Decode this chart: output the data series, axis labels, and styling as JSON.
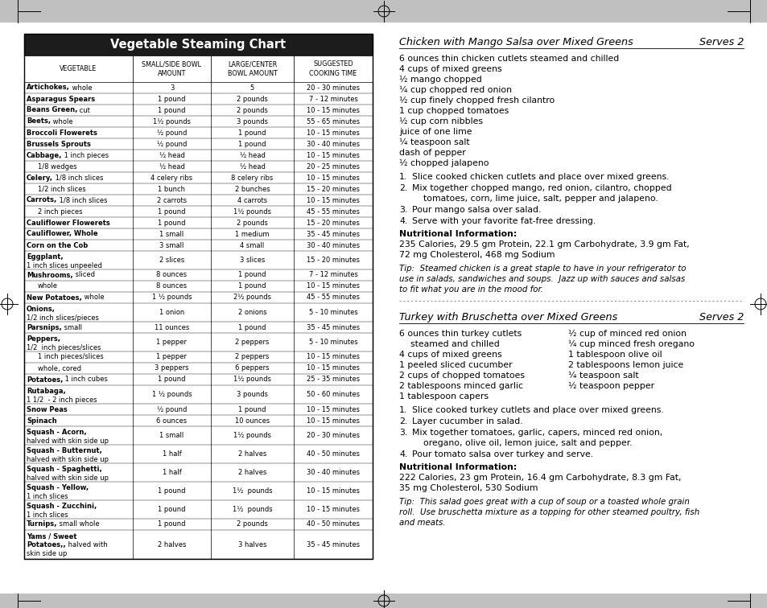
{
  "table_title": "Vegetable Steaming Chart",
  "col_headers": [
    "VEGETABLE",
    "SMALL/SIDE BOWL\nAMOUNT",
    "LARGE/CENTER\nBOWL AMOUNT",
    "SUGGESTED\nCOOKING TIME"
  ],
  "table_rows": [
    [
      [
        "b",
        "Artichokes,"
      ],
      [
        "n",
        " whole"
      ],
      "3",
      "5",
      "20 - 30 minutes"
    ],
    [
      [
        "b",
        "Asparagus Spears"
      ],
      [
        "n",
        ""
      ],
      "1 pound",
      "2 pounds",
      "7 - 12 minutes"
    ],
    [
      [
        "b",
        "Beans Green,"
      ],
      [
        "n",
        " cut"
      ],
      "1 pound",
      "2 pounds",
      "10 - 15 minutes"
    ],
    [
      [
        "b",
        "Beets,"
      ],
      [
        "n",
        " whole"
      ],
      "1½ pounds",
      "3 pounds",
      "55 - 65 minutes"
    ],
    [
      [
        "b",
        "Broccoli Flowerets"
      ],
      [
        "n",
        ""
      ],
      "½ pound",
      "1 pound",
      "10 - 15 minutes"
    ],
    [
      [
        "b",
        "Brussels Sprouts"
      ],
      [
        "n",
        ""
      ],
      "½ pound",
      "1 pound",
      "30 - 40 minutes"
    ],
    [
      [
        "b",
        "Cabbage,"
      ],
      [
        "n",
        " 1 inch pieces"
      ],
      "½ head",
      "½ head",
      "10 - 15 minutes"
    ],
    [
      [
        "i",
        "1/8 wedges"
      ],
      [
        "n",
        ""
      ],
      "½ head",
      "½ head",
      "20 - 25 minutes"
    ],
    [
      [
        "b",
        "Celery,"
      ],
      [
        "n",
        " 1/8 inch slices"
      ],
      "4 celery ribs",
      "8 celery ribs",
      "10 - 15 minutes"
    ],
    [
      [
        "i",
        "1/2 inch slices"
      ],
      [
        "n",
        ""
      ],
      "1 bunch",
      "2 bunches",
      "15 - 20 minutes"
    ],
    [
      [
        "b",
        "Carrots,"
      ],
      [
        "n",
        " 1/8 inch slices"
      ],
      "2 carrots",
      "4 carrots",
      "10 - 15 minutes"
    ],
    [
      [
        "i",
        "2 inch pieces"
      ],
      [
        "n",
        ""
      ],
      "1 pound",
      "1½ pounds",
      "45 - 55 minutes"
    ],
    [
      [
        "b",
        "Cauliflower Flowerets"
      ],
      [
        "n",
        ""
      ],
      "1 pound",
      "2 pounds",
      "15 - 20 minutes"
    ],
    [
      [
        "b",
        "Cauliflower, Whole"
      ],
      [
        "n",
        ""
      ],
      "1 small",
      "1 medium",
      "35 - 45 minutes"
    ],
    [
      [
        "b",
        "Corn on the Cob"
      ],
      [
        "n",
        ""
      ],
      "3 small",
      "4 small",
      "30 - 40 minutes"
    ],
    [
      [
        "b2",
        "Eggplant,",
        "1 inch slices unpeeled"
      ],
      [
        "n",
        ""
      ],
      "2 slices",
      "3 slices",
      "15 - 20 minutes"
    ],
    [
      [
        "b",
        "Mushrooms,"
      ],
      [
        "n",
        " sliced"
      ],
      "8 ounces",
      "1 pound",
      "7 - 12 minutes"
    ],
    [
      [
        "i",
        "whole"
      ],
      [
        "n",
        ""
      ],
      "8 ounces",
      "1 pound",
      "10 - 15 minutes"
    ],
    [
      [
        "b",
        "New Potatoes,"
      ],
      [
        "n",
        " whole"
      ],
      "1 ½ pounds",
      "2½ pounds",
      "45 - 55 minutes"
    ],
    [
      [
        "b2",
        "Onions,",
        "1/2 inch slices/pieces"
      ],
      [
        "n",
        ""
      ],
      "1 onion",
      "2 onions",
      "5 - 10 minutes"
    ],
    [
      [
        "b",
        "Parsnips,"
      ],
      [
        "n",
        " small"
      ],
      "11 ounces",
      "1 pound",
      "35 - 45 minutes"
    ],
    [
      [
        "b2",
        "Peppers,",
        "1/2  inch pieces/slices"
      ],
      [
        "n",
        ""
      ],
      "1 pepper",
      "2 peppers",
      "5 - 10 minutes"
    ],
    [
      [
        "i",
        "1 inch pieces/slices"
      ],
      [
        "n",
        ""
      ],
      "1 pepper",
      "2 peppers",
      "10 - 15 minutes"
    ],
    [
      [
        "i",
        "whole, cored"
      ],
      [
        "n",
        ""
      ],
      "3 peppers",
      "6 peppers",
      "10 - 15 minutes"
    ],
    [
      [
        "b",
        "Potatoes,"
      ],
      [
        "n",
        " 1 inch cubes"
      ],
      "1 pound",
      "1½ pounds",
      "25 - 35 minutes"
    ],
    [
      [
        "b2",
        "Rutabaga,",
        "1 1/2  - 2 inch pieces"
      ],
      [
        "n",
        ""
      ],
      "1 ½ pounds",
      "3 pounds",
      "50 - 60 minutes"
    ],
    [
      [
        "b",
        "Snow Peas"
      ],
      [
        "n",
        ""
      ],
      "½ pound",
      "1 pound",
      "10 - 15 minutes"
    ],
    [
      [
        "b",
        "Spinach"
      ],
      [
        "n",
        ""
      ],
      "6 ounces",
      "10 ounces",
      "10 - 15 minutes"
    ],
    [
      [
        "b2",
        "Squash - Acorn,",
        "halved with skin side up"
      ],
      [
        "n",
        ""
      ],
      "1 small",
      "1½ pounds",
      "20 - 30 minutes"
    ],
    [
      [
        "b2",
        "Squash - Butternut,",
        "halved with skin side up"
      ],
      [
        "n",
        ""
      ],
      "1 half",
      "2 halves",
      "40 - 50 minutes"
    ],
    [
      [
        "b2",
        "Squash - Spaghetti,",
        "halved with skin side up"
      ],
      [
        "n",
        ""
      ],
      "1 half",
      "2 halves",
      "30 - 40 minutes"
    ],
    [
      [
        "b2",
        "Squash - Yellow,",
        "1 inch slices"
      ],
      [
        "n",
        ""
      ],
      "1 pound",
      "1½  pounds",
      "10 - 15 minutes"
    ],
    [
      [
        "b2",
        "Squash - Zucchini,",
        "1 inch slices"
      ],
      [
        "n",
        ""
      ],
      "1 pound",
      "1½  pounds",
      "10 - 15 minutes"
    ],
    [
      [
        "b",
        "Turnips,"
      ],
      [
        "n",
        " small whole"
      ],
      "1 pound",
      "2 pounds",
      "40 - 50 minutes"
    ],
    [
      [
        "b3",
        "Yams / Sweet",
        "Potatoes,",
        "halved with",
        "skin side up"
      ],
      [
        "n",
        ""
      ],
      "2 halves",
      "3 halves",
      "35 - 45 minutes"
    ]
  ],
  "recipe1_title": "Chicken with Mango Salsa over Mixed Greens",
  "recipe1_serves": "Serves 2",
  "recipe1_ingredients": [
    "6 ounces thin chicken cutlets steamed and chilled",
    "4 cups of mixed greens",
    "½ mango chopped",
    "¼ cup chopped red onion",
    "½ cup finely chopped fresh cilantro",
    "1 cup chopped tomatoes",
    "½ cup corn nibbles",
    "juice of one lime",
    "¼ teaspoon salt",
    "dash of pepper",
    "½ chopped jalapeno"
  ],
  "recipe1_steps": [
    [
      "1.",
      "Slice cooked chicken cutlets and place over mixed greens."
    ],
    [
      "2.",
      "Mix together chopped mango, red onion, cilantro, chopped\ntomatoes, corn, lime juice, salt, pepper and jalapeno."
    ],
    [
      "3.",
      "Pour mango salsa over salad."
    ],
    [
      "4.",
      "Serve with your favorite fat-free dressing."
    ]
  ],
  "recipe1_nutrition_label": "Nutritional Information:",
  "recipe1_nutrition": "235 Calories, 29.5 gm Protein, 22.1 gm Carbohydrate, 3.9 gm Fat,\n72 mg Cholesterol, 468 mg Sodium",
  "recipe1_tip": "Tip:  Steamed chicken is a great staple to have in your refrigerator to\nuse in salads, sandwiches and soups.  Jazz up with sauces and salsas\nto fit what you are in the mood for.",
  "recipe2_title": "Turkey with Bruschetta over Mixed Greens",
  "recipe2_serves": "Serves 2",
  "recipe2_ingredients_left": [
    "6 ounces thin turkey cutlets",
    "    steamed and chilled",
    "4 cups of mixed greens",
    "1 peeled sliced cucumber",
    "2 cups of chopped tomatoes",
    "2 tablespoons minced garlic",
    "1 tablespoon capers"
  ],
  "recipe2_ingredients_right": [
    "½ cup of minced red onion",
    "¼ cup minced fresh oregano",
    "1 tablespoon olive oil",
    "2 tablespoons lemon juice",
    "¼ teaspoon salt",
    "½ teaspoon pepper"
  ],
  "recipe2_steps": [
    [
      "1.",
      "Slice cooked turkey cutlets and place over mixed greens."
    ],
    [
      "2.",
      "Layer cucumber in salad."
    ],
    [
      "3.",
      "Mix together tomatoes, garlic, capers, minced red onion,\noregano, olive oil, lemon juice, salt and pepper."
    ],
    [
      "4.",
      "Pour tomato salsa over turkey and serve."
    ]
  ],
  "recipe2_nutrition_label": "Nutritional Information:",
  "recipe2_nutrition": "222 Calories, 23 gm Protein, 16.4 gm Carbohydrate, 8.3 gm Fat,\n35 mg Cholesterol, 530 Sodium",
  "recipe2_tip": "Tip:  This salad goes great with a cup of soup or a toasted whole grain\nroll.  Use bruschetta mixture as a topping for other steamed poultry, fish\nand meats."
}
